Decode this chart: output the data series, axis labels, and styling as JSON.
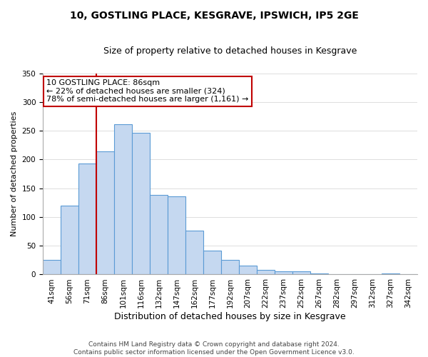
{
  "title": "10, GOSTLING PLACE, KESGRAVE, IPSWICH, IP5 2GE",
  "subtitle": "Size of property relative to detached houses in Kesgrave",
  "xlabel": "Distribution of detached houses by size in Kesgrave",
  "ylabel": "Number of detached properties",
  "categories": [
    "41sqm",
    "56sqm",
    "71sqm",
    "86sqm",
    "101sqm",
    "116sqm",
    "132sqm",
    "147sqm",
    "162sqm",
    "177sqm",
    "192sqm",
    "207sqm",
    "222sqm",
    "237sqm",
    "252sqm",
    "267sqm",
    "282sqm",
    "297sqm",
    "312sqm",
    "327sqm",
    "342sqm"
  ],
  "values": [
    25,
    120,
    193,
    214,
    261,
    247,
    138,
    136,
    76,
    41,
    25,
    16,
    8,
    5,
    5,
    2,
    1,
    1,
    0,
    2,
    1
  ],
  "bar_color": "#c5d8f0",
  "bar_edge_color": "#5b9bd5",
  "vline_color": "#c00000",
  "vline_index": 3,
  "annotation_title": "10 GOSTLING PLACE: 86sqm",
  "annotation_line1": "← 22% of detached houses are smaller (324)",
  "annotation_line2": "78% of semi-detached houses are larger (1,161) →",
  "annotation_box_color": "#ffffff",
  "annotation_box_edge_color": "#c00000",
  "ylim": [
    0,
    350
  ],
  "yticks": [
    0,
    50,
    100,
    150,
    200,
    250,
    300,
    350
  ],
  "footer_line1": "Contains HM Land Registry data © Crown copyright and database right 2024.",
  "footer_line2": "Contains public sector information licensed under the Open Government Licence v3.0.",
  "title_fontsize": 10,
  "subtitle_fontsize": 9,
  "xlabel_fontsize": 9,
  "ylabel_fontsize": 8,
  "tick_fontsize": 7.5,
  "annotation_fontsize": 8,
  "footer_fontsize": 6.5
}
